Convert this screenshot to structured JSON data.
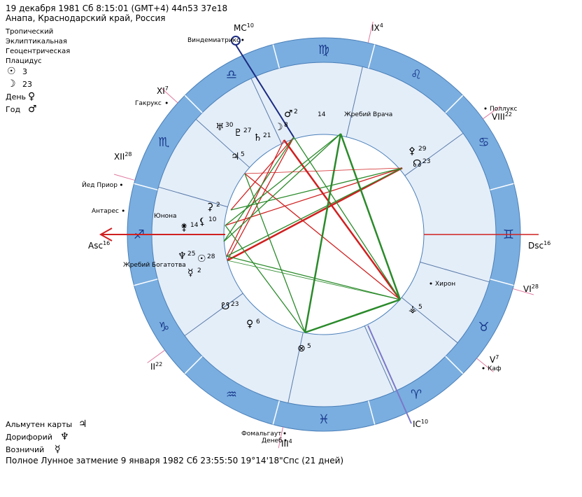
{
  "header": {
    "datetime": "19 декабря 1981  Сб   8:15:01 (GMT+4) 44n53  37e18",
    "place": "Анапа, Краснодарский край, Россия"
  },
  "settings": [
    "Тропический",
    "Эклиптикальная",
    "Геоцентрическая",
    "Плацидус"
  ],
  "luminaries": [
    {
      "symbol": "☉",
      "value": "3"
    },
    {
      "symbol": "☽",
      "value": "23"
    }
  ],
  "rulers": [
    {
      "label": "День",
      "symbol": "♀"
    },
    {
      "label": "Год",
      "symbol": "♂"
    }
  ],
  "houses": [
    {
      "label": "MC",
      "degree": "10"
    },
    {
      "label": "IX",
      "degree": "4"
    },
    {
      "label": "VIII",
      "degree": "22"
    },
    {
      "label": "Dsc",
      "degree": "16"
    },
    {
      "label": "VI",
      "degree": "28"
    },
    {
      "label": "V",
      "degree": "7"
    },
    {
      "label": "IC",
      "degree": "10"
    },
    {
      "label": "III",
      "degree": "4"
    },
    {
      "label": "II",
      "degree": "22"
    },
    {
      "label": "Asc",
      "degree": "16"
    },
    {
      "label": "XII",
      "degree": "28"
    },
    {
      "label": "XI",
      "degree": "7"
    }
  ],
  "signs": [
    "♍",
    "♌",
    "♋",
    "♊",
    "♉",
    "♈",
    "♓",
    "♒",
    "♑",
    "♐",
    "♏",
    "♎"
  ],
  "stars": [
    "Виндемиатрикс",
    "Гакрукс",
    "Поллукс",
    "Йед Приор",
    "Антарес",
    "Хирон",
    "Каф",
    "Фомальгаут",
    "Денеб"
  ],
  "points": [
    {
      "symbol": "♂",
      "degree": "2",
      "color": "#2a8a2a"
    },
    {
      "symbol": "☽",
      "degree": "8",
      "color": "#d02020"
    },
    {
      "symbol": "♅",
      "degree": "30",
      "color": "#2a8a2a"
    },
    {
      "symbol": "♇",
      "degree": "27",
      "color": "#2a8a2a"
    },
    {
      "symbol": "♄",
      "degree": "21",
      "color": "#2a8a2a"
    },
    {
      "symbol": "♃",
      "degree": "5",
      "color": "#2a8a2a"
    },
    {
      "symbol": "⚳",
      "degree": "2",
      "color": "#2a8a2a"
    },
    {
      "symbol": "⚸",
      "degree": "10",
      "color": "#2a8a2a"
    },
    {
      "symbol": "⚵",
      "degree": "14",
      "color": "#2a8a2a"
    },
    {
      "symbol": "♆",
      "degree": "25",
      "color": "#2a8a2a"
    },
    {
      "symbol": "☉",
      "degree": "28",
      "color": "#d02020"
    },
    {
      "symbol": "☿",
      "degree": "2",
      "color": "#2a8a2a"
    },
    {
      "symbol": "☋",
      "degree": "23",
      "color": "#d02020"
    },
    {
      "symbol": "♀",
      "degree": "6",
      "color": "#2a8a2a"
    },
    {
      "symbol": "⊗",
      "degree": "5",
      "color": "#2a8a2a"
    },
    {
      "symbol": "⚴",
      "degree": "29",
      "color": "#2a8a2a"
    },
    {
      "symbol": "☊",
      "degree": "23",
      "color": "#d02020"
    },
    {
      "symbol": "⚶",
      "degree": "5",
      "color": "#d02020"
    }
  ],
  "labels": [
    "14",
    "Жребий Врача",
    "Юнона",
    "Жребий Богатотва"
  ],
  "footer": {
    "items": [
      {
        "label": "Альмутен карты",
        "symbol": "♃"
      },
      {
        "label": "Дорифорий",
        "symbol": "♆"
      },
      {
        "label": "Возничий",
        "symbol": "☿"
      }
    ],
    "eclipse": "Полное Лунное затмение 9 января 1982 Сб 23:55:50 19°14'18\"Спс (21 дней)"
  }
}
